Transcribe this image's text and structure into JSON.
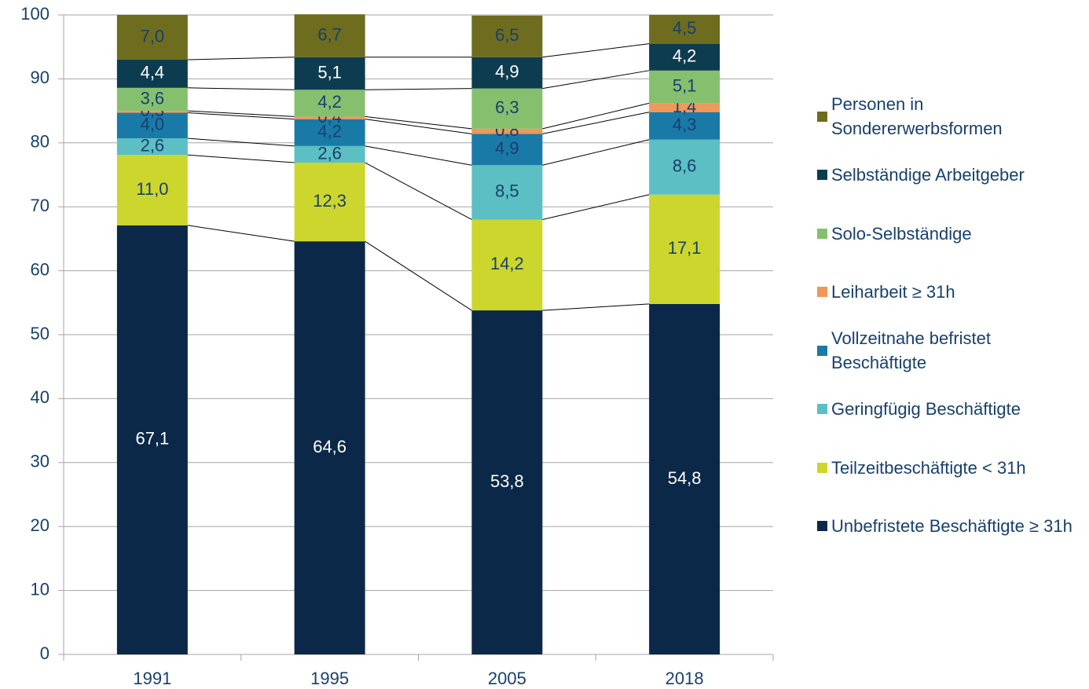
{
  "chart_data": {
    "type": "stacked_bar",
    "categories": [
      "1991",
      "1995",
      "2005",
      "2018"
    ],
    "series": [
      {
        "name": "Unbefristete Beschäftigte ≥ 31h",
        "color": "#0b2848",
        "values": [
          67.1,
          64.6,
          53.8,
          54.8
        ],
        "value_labels": [
          "67,1",
          "64,6",
          "53,8",
          "54,8"
        ]
      },
      {
        "name": "Teilzeitbeschäftigte < 31h",
        "color": "#cdd62c",
        "values": [
          11.0,
          12.3,
          14.2,
          17.1
        ],
        "value_labels": [
          "11,0",
          "12,3",
          "14,2",
          "17,1"
        ]
      },
      {
        "name": "Geringfügig Beschäftigte",
        "color": "#5bbfc3",
        "values": [
          2.6,
          2.6,
          8.5,
          8.6
        ],
        "value_labels": [
          "2,6",
          "2,6",
          "8,5",
          "8,6"
        ]
      },
      {
        "name": "Vollzeitnahe befristet Beschäftigte",
        "color": "#1a7aa7",
        "values": [
          4.0,
          4.2,
          4.9,
          4.3
        ],
        "value_labels": [
          "4,0",
          "4,2",
          "4,9",
          "4,3"
        ]
      },
      {
        "name": "Leiharbeit ≥ 31h",
        "color": "#f0975a",
        "values": [
          0.3,
          0.4,
          0.8,
          1.4
        ],
        "value_labels": [
          "0,3",
          "0,4",
          "0,8",
          "1,4"
        ]
      },
      {
        "name": "Solo-Selbständige",
        "color": "#86c06e",
        "values": [
          3.6,
          4.2,
          6.3,
          5.1
        ],
        "value_labels": [
          "3,6",
          "4,2",
          "6,3",
          "5,1"
        ]
      },
      {
        "name": "Selbständige Arbeitgeber",
        "color": "#0d3c50",
        "values": [
          4.4,
          5.1,
          4.9,
          4.2
        ],
        "value_labels": [
          "4,4",
          "5,1",
          "4,9",
          "4,2"
        ]
      },
      {
        "name": "Personen in Sondererwerbsformen",
        "color": "#6e6c1f",
        "values": [
          7.0,
          6.7,
          6.5,
          4.5
        ],
        "value_labels": [
          "7,0",
          "6,7",
          "6,5",
          "4,5"
        ]
      }
    ],
    "ylim": [
      0,
      100
    ],
    "yticks": [
      0,
      10,
      20,
      30,
      40,
      50,
      60,
      70,
      80,
      90,
      100
    ],
    "grid": true,
    "legend": "right"
  }
}
